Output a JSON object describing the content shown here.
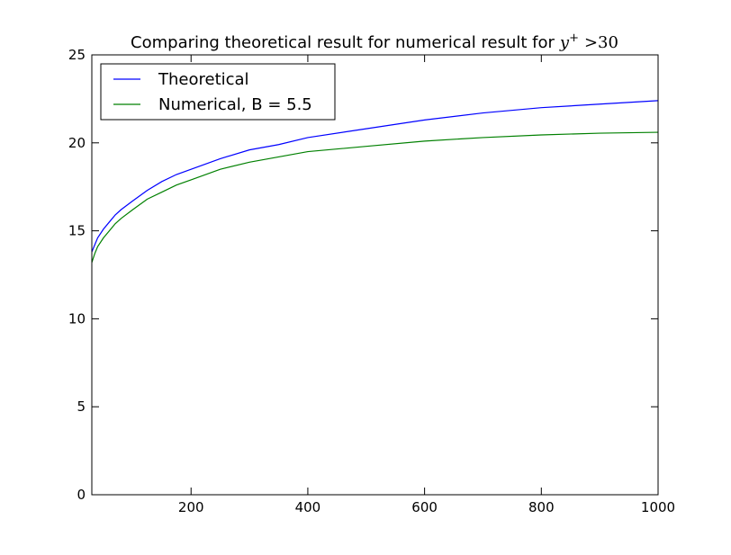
{
  "chart_data": {
    "type": "line",
    "title": {
      "prefix": "Comparing theoretical result for numerical result for",
      "var": "y",
      "sup": "+",
      "suffix": ">30"
    },
    "xlabel": "",
    "ylabel": "",
    "xlim": [
      30,
      1000
    ],
    "ylim": [
      0,
      25
    ],
    "xticks": [
      200,
      400,
      600,
      800,
      1000
    ],
    "xtick_labels": [
      "200",
      "400",
      "600",
      "800",
      "1000"
    ],
    "yticks": [
      0,
      5,
      10,
      15,
      20,
      25
    ],
    "ytick_labels": [
      "0",
      "5",
      "10",
      "15",
      "20",
      "25"
    ],
    "grid": false,
    "legend_position": "top-left",
    "series": [
      {
        "name": "Theoretical",
        "color": "#0000ff",
        "x": [
          30,
          35,
          40,
          50,
          60,
          70,
          80,
          100,
          125,
          150,
          175,
          200,
          250,
          300,
          350,
          400,
          500,
          600,
          700,
          800,
          900,
          1000
        ],
        "y": [
          13.8,
          14.2,
          14.6,
          15.1,
          15.5,
          15.9,
          16.2,
          16.7,
          17.3,
          17.8,
          18.2,
          18.5,
          19.1,
          19.6,
          19.9,
          20.3,
          20.8,
          21.3,
          21.7,
          22.0,
          22.2,
          22.4
        ]
      },
      {
        "name": "Numerical, B = 5.5",
        "color": "#008000",
        "x": [
          30,
          35,
          40,
          50,
          60,
          70,
          80,
          100,
          125,
          150,
          175,
          200,
          250,
          300,
          350,
          400,
          500,
          600,
          700,
          800,
          900,
          1000
        ],
        "y": [
          13.2,
          13.7,
          14.1,
          14.6,
          15.0,
          15.4,
          15.7,
          16.2,
          16.8,
          17.2,
          17.6,
          17.9,
          18.5,
          18.9,
          19.2,
          19.5,
          19.8,
          20.1,
          20.3,
          20.45,
          20.55,
          20.6
        ]
      }
    ]
  }
}
